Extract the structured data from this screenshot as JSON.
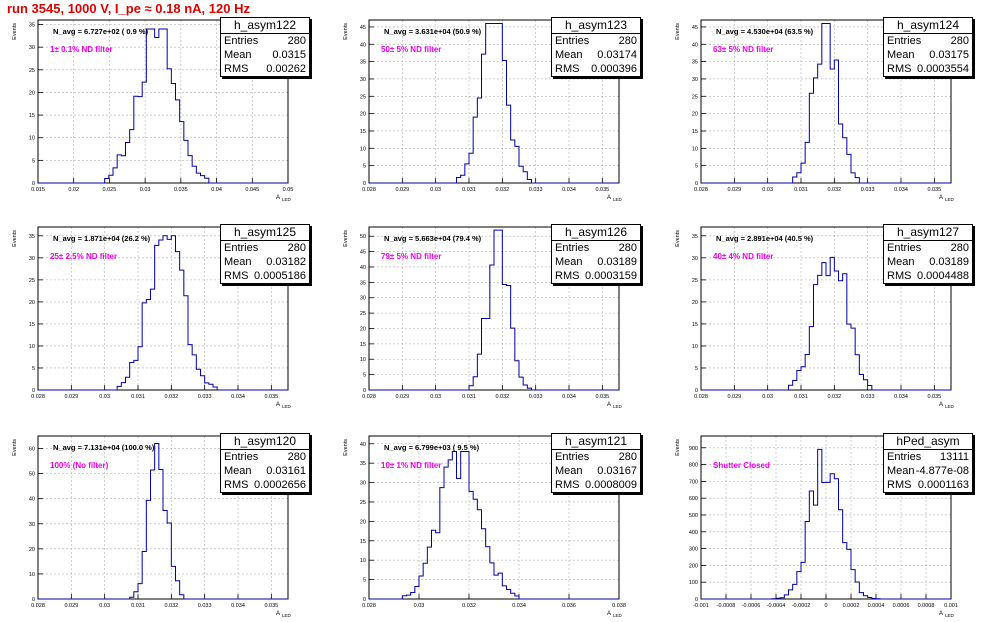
{
  "title": "run 3545,  1000 V, I_pe ≈ 0.18 nA, 120 Hz",
  "colors": {
    "title": "#e00000",
    "histogram": "#0000aa",
    "annotation": "#ee00ee",
    "axis": "#000000",
    "grid": "#b0b0b0"
  },
  "axis_labels": {
    "y": "Events",
    "x": "A",
    "x_sub": "LED"
  },
  "stat_labels": {
    "entries": "Entries",
    "mean": "Mean",
    "rms": "RMS"
  },
  "panels": [
    {
      "name": "h_asym122",
      "navg": "N_avg = 6.727e+02 ( 0.9 %)",
      "note": "1± 0.1% ND filter",
      "entries": "280",
      "mean": "0.0315",
      "rms": "0.00262"
    },
    {
      "name": "h_asym123",
      "navg": "N_avg = 3.631e+04 (50.9 %)",
      "note": "50± 5% ND filter",
      "entries": "280",
      "mean": "0.03174",
      "rms": "0.000396"
    },
    {
      "name": "h_asym124",
      "navg": "N_avg = 4.530e+04 (63.5 %)",
      "note": "63± 5% ND filter",
      "entries": "280",
      "mean": "0.03175",
      "rms": "0.0003554"
    },
    {
      "name": "h_asym125",
      "navg": "N_avg = 1.871e+04 (26.2 %)",
      "note": "25± 2.5% ND filter",
      "entries": "280",
      "mean": "0.03182",
      "rms": "0.0005186"
    },
    {
      "name": "h_asym126",
      "navg": "N_avg = 5.663e+04 (79.4 %)",
      "note": "79± 5% ND filter",
      "entries": "280",
      "mean": "0.03189",
      "rms": "0.0003159"
    },
    {
      "name": "h_asym127",
      "navg": "N_avg = 2.891e+04 (40.5 %)",
      "note": "40± 4% ND filter",
      "entries": "280",
      "mean": "0.03189",
      "rms": "0.0004488"
    },
    {
      "name": "h_asym120",
      "navg": "N_avg = 7.131e+04 (100.0 %)",
      "note": "100% (No filter)",
      "entries": "280",
      "mean": "0.03161",
      "rms": "0.0002656"
    },
    {
      "name": "h_asym121",
      "navg": "N_avg = 6.799e+03 ( 9.5 %)",
      "note": "10± 1% ND filter",
      "entries": "280",
      "mean": "0.03167",
      "rms": "0.0008009"
    },
    {
      "name": "hPed_asym",
      "navg": "",
      "note": "Shutter Closed",
      "entries": "13111",
      "mean": "-4.877e-08",
      "rms": "0.0001163"
    }
  ],
  "chart_data": [
    {
      "type": "histogram",
      "name": "h_asym122",
      "xlim": [
        0.015,
        0.05
      ],
      "ylim": [
        0,
        36
      ],
      "xticks": [
        "0.015",
        "0.02",
        "0.025",
        "0.03",
        "0.035",
        "0.04",
        "0.045",
        "0.05"
      ],
      "yticks": [
        "0",
        "5",
        "10",
        "15",
        "20",
        "25",
        "30",
        "35"
      ],
      "mean": 0.0315,
      "rms": 0.00262,
      "peak": 34,
      "grid": true
    },
    {
      "type": "histogram",
      "name": "h_asym123",
      "xlim": [
        0.028,
        0.0355
      ],
      "ylim": [
        0,
        47
      ],
      "xticks": [
        "0.028",
        "0.029",
        "0.03",
        "0.031",
        "0.032",
        "0.033",
        "0.034",
        "0.035"
      ],
      "yticks": [
        "0",
        "5",
        "10",
        "15",
        "20",
        "25",
        "30",
        "35",
        "40",
        "45"
      ],
      "mean": 0.03174,
      "rms": 0.000396,
      "peak": 46,
      "grid": true
    },
    {
      "type": "histogram",
      "name": "h_asym124",
      "xlim": [
        0.028,
        0.0355
      ],
      "ylim": [
        0,
        47
      ],
      "xticks": [
        "0.028",
        "0.029",
        "0.03",
        "0.031",
        "0.032",
        "0.033",
        "0.034",
        "0.035"
      ],
      "yticks": [
        "0",
        "5",
        "10",
        "15",
        "20",
        "25",
        "30",
        "35",
        "40",
        "45"
      ],
      "mean": 0.03175,
      "rms": 0.0003554,
      "peak": 46,
      "grid": true
    },
    {
      "type": "histogram",
      "name": "h_asym125",
      "xlim": [
        0.028,
        0.0355
      ],
      "ylim": [
        0,
        37
      ],
      "xticks": [
        "0.028",
        "0.029",
        "0.03",
        "0.031",
        "0.032",
        "0.033",
        "0.034",
        "0.035"
      ],
      "yticks": [
        "0",
        "5",
        "10",
        "15",
        "20",
        "25",
        "30",
        "35"
      ],
      "mean": 0.03182,
      "rms": 0.0005186,
      "peak": 35,
      "grid": true
    },
    {
      "type": "histogram",
      "name": "h_asym126",
      "xlim": [
        0.028,
        0.0355
      ],
      "ylim": [
        0,
        53
      ],
      "xticks": [
        "0.028",
        "0.029",
        "0.03",
        "0.031",
        "0.032",
        "0.033",
        "0.034",
        "0.035"
      ],
      "yticks": [
        "0",
        "5",
        "10",
        "15",
        "20",
        "25",
        "30",
        "35",
        "40",
        "45",
        "50"
      ],
      "mean": 0.03189,
      "rms": 0.0003159,
      "peak": 52,
      "grid": true
    },
    {
      "type": "histogram",
      "name": "h_asym127",
      "xlim": [
        0.028,
        0.0355
      ],
      "ylim": [
        0,
        37
      ],
      "xticks": [
        "0.028",
        "0.029",
        "0.03",
        "0.031",
        "0.032",
        "0.033",
        "0.034",
        "0.035"
      ],
      "yticks": [
        "0",
        "5",
        "10",
        "15",
        "20",
        "25",
        "30",
        "35"
      ],
      "mean": 0.03189,
      "rms": 0.0004488,
      "peak": 35,
      "grid": true
    },
    {
      "type": "histogram",
      "name": "h_asym120",
      "xlim": [
        0.028,
        0.0355
      ],
      "ylim": [
        0,
        65
      ],
      "xticks": [
        "0.028",
        "0.029",
        "0.03",
        "0.031",
        "0.032",
        "0.033",
        "0.034",
        "0.035"
      ],
      "yticks": [
        "0",
        "10",
        "20",
        "30",
        "40",
        "50",
        "60"
      ],
      "mean": 0.03161,
      "rms": 0.0002656,
      "peak": 62,
      "grid": true
    },
    {
      "type": "histogram",
      "name": "h_asym121",
      "xlim": [
        0.028,
        0.038
      ],
      "ylim": [
        0,
        42
      ],
      "xticks": [
        "0.028",
        "0.03",
        "0.032",
        "0.034",
        "0.036",
        "0.038"
      ],
      "yticks": [
        "0",
        "5",
        "10",
        "15",
        "20",
        "25",
        "30",
        "35",
        "40"
      ],
      "mean": 0.03167,
      "rms": 0.0008009,
      "peak": 38,
      "grid": true
    },
    {
      "type": "histogram",
      "name": "hPed_asym",
      "xlim": [
        -0.001,
        0.001
      ],
      "ylim": [
        0,
        970
      ],
      "xticks": [
        "-0.001",
        "-0.0008",
        "-0.0006",
        "-0.0004",
        "-0.0002",
        "0",
        "0.0002",
        "0.0004",
        "0.0006",
        "0.0008",
        "0.001"
      ],
      "yticks": [
        "0",
        "100",
        "200",
        "300",
        "400",
        "500",
        "600",
        "700",
        "800",
        "900"
      ],
      "mean": 0.0,
      "rms": 0.0001163,
      "peak": 900,
      "grid": true
    }
  ]
}
